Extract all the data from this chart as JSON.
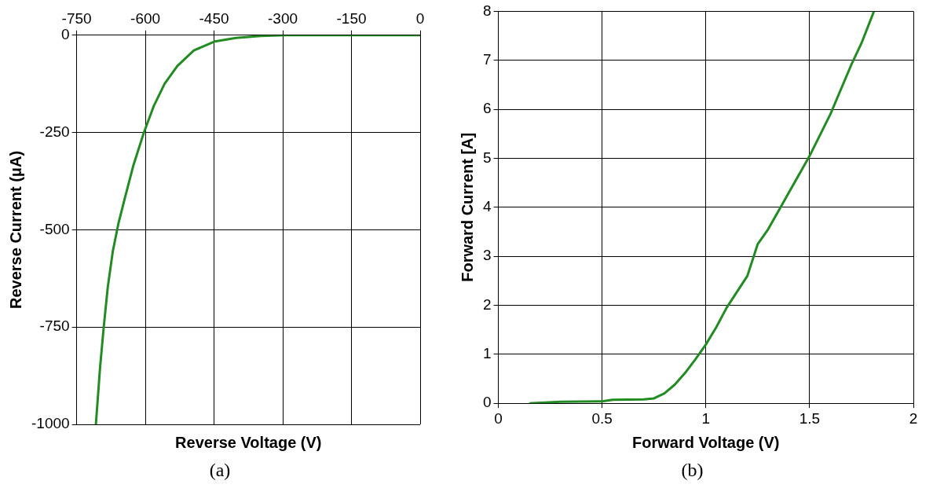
{
  "chart_data": [
    {
      "type": "line",
      "xlabel": "Reverse Voltage (V)",
      "ylabel": "Reverse Current (μA)",
      "series": [
        {
          "color": "#228b22",
          "x": [
            -708,
            -699,
            -691,
            -682,
            -671,
            -659,
            -644,
            -626,
            -604,
            -582,
            -558,
            -530,
            -494,
            -448,
            -402,
            -348,
            -293,
            0
          ],
          "values": [
            -1000,
            -856,
            -752,
            -647,
            -555,
            -485,
            -415,
            -334,
            -253,
            -183,
            -125,
            -79,
            -39,
            -16,
            -7,
            -2,
            0,
            0
          ]
        }
      ],
      "xlim": [
        -750,
        0
      ],
      "xticks": [
        -750,
        -600,
        -450,
        -300,
        -150,
        0
      ],
      "ylim": [
        -1000,
        0
      ],
      "yticks": [
        -1000,
        -750,
        -500,
        -250,
        0
      ],
      "grid": true,
      "legend": false,
      "annotations": [
        "(a)"
      ]
    },
    {
      "type": "line",
      "xlabel": "Forward Voltage (V)",
      "ylabel": "Forward Current [A]",
      "color": "#228b22",
      "x": [
        0.15,
        0.3,
        0.5,
        0.55,
        0.7,
        0.75,
        0.8,
        0.85,
        0.9,
        0.95,
        1.0,
        1.05,
        1.1,
        1.2,
        1.25,
        1.3,
        1.4,
        1.5,
        1.6,
        1.7,
        1.75,
        1.81
      ],
      "values": [
        0,
        0.03,
        0.04,
        0.07,
        0.08,
        0.1,
        0.2,
        0.38,
        0.62,
        0.9,
        1.2,
        1.55,
        1.95,
        2.6,
        3.25,
        3.55,
        4.3,
        5.05,
        5.9,
        6.9,
        7.35,
        8.0
      ],
      "xlim": [
        0,
        2
      ],
      "xticks": [
        0,
        0.5,
        1,
        1.5,
        2
      ],
      "ylim": [
        0,
        8
      ],
      "yticks": [
        0,
        1,
        2,
        3,
        4,
        5,
        6,
        7,
        8
      ],
      "grid": true,
      "legend": false,
      "annotations": [
        "(b)"
      ]
    }
  ]
}
